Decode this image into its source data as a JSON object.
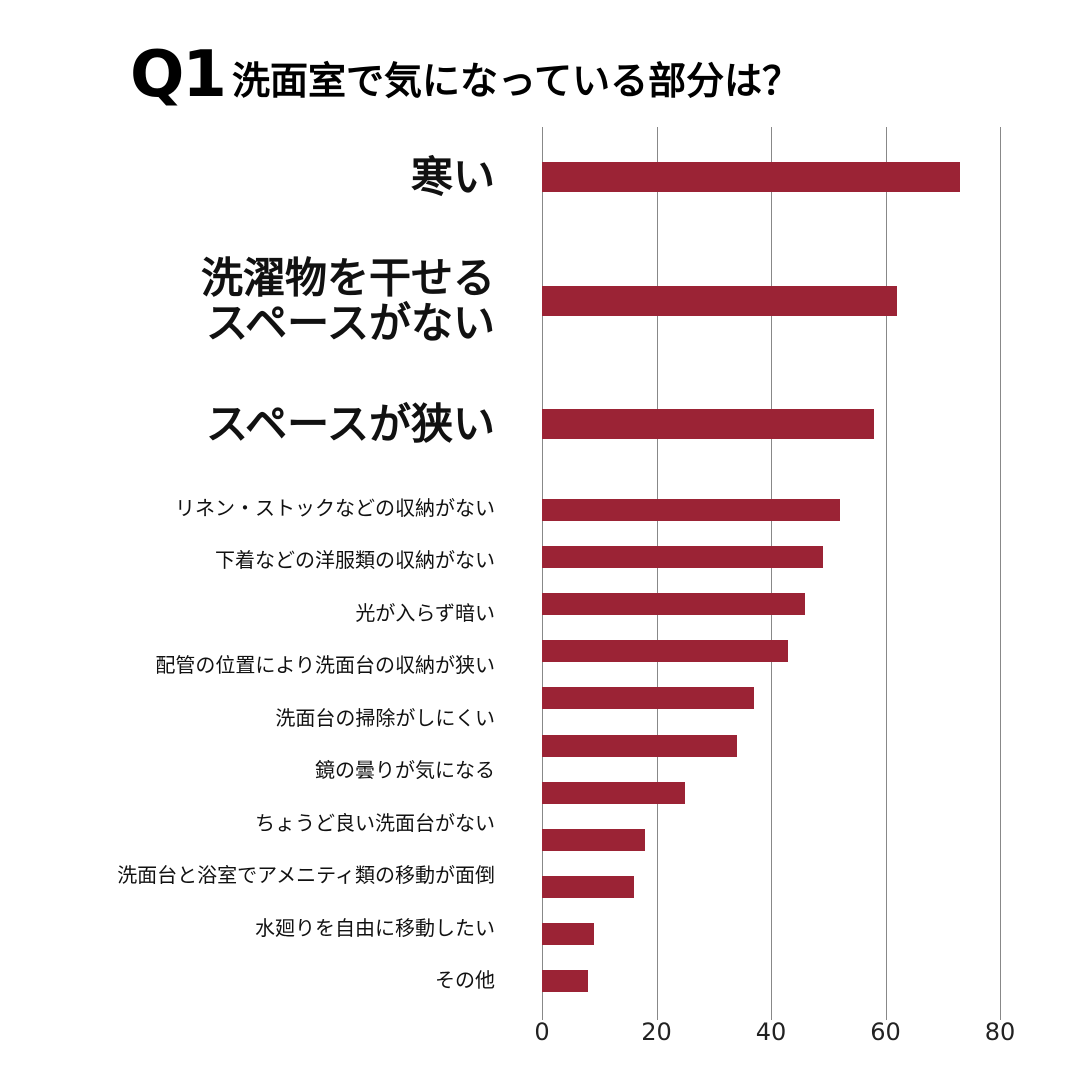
{
  "chart_data": {
    "type": "bar",
    "orientation": "horizontal",
    "title_prefix": "Q1",
    "title": "洗面室で気になっている部分は？",
    "categories": [
      "寒い",
      "洗濯物を干せる\nスペースがない",
      "スペースが狭い",
      "リネン・ストックなどの収納がない",
      "下着などの洋服類の収納がない",
      "光が入らず暗い",
      "配管の位置により洗面台の収納が狭い",
      "洗面台の掃除がしにくい",
      "鏡の曇りが気になる",
      "ちょうど良い洗面台がない",
      null,
      "洗面台と浴室でアメニティ類の移動が面倒",
      "水廻りを自由に移動したい",
      "その他"
    ],
    "values": [
      73,
      62,
      58,
      52,
      49,
      46,
      43,
      37,
      34,
      25,
      18,
      16,
      9,
      8
    ],
    "color": "#9b2335",
    "xlim": [
      0,
      80
    ],
    "xticks": [
      0,
      20,
      40,
      60,
      80
    ],
    "grid": true
  }
}
